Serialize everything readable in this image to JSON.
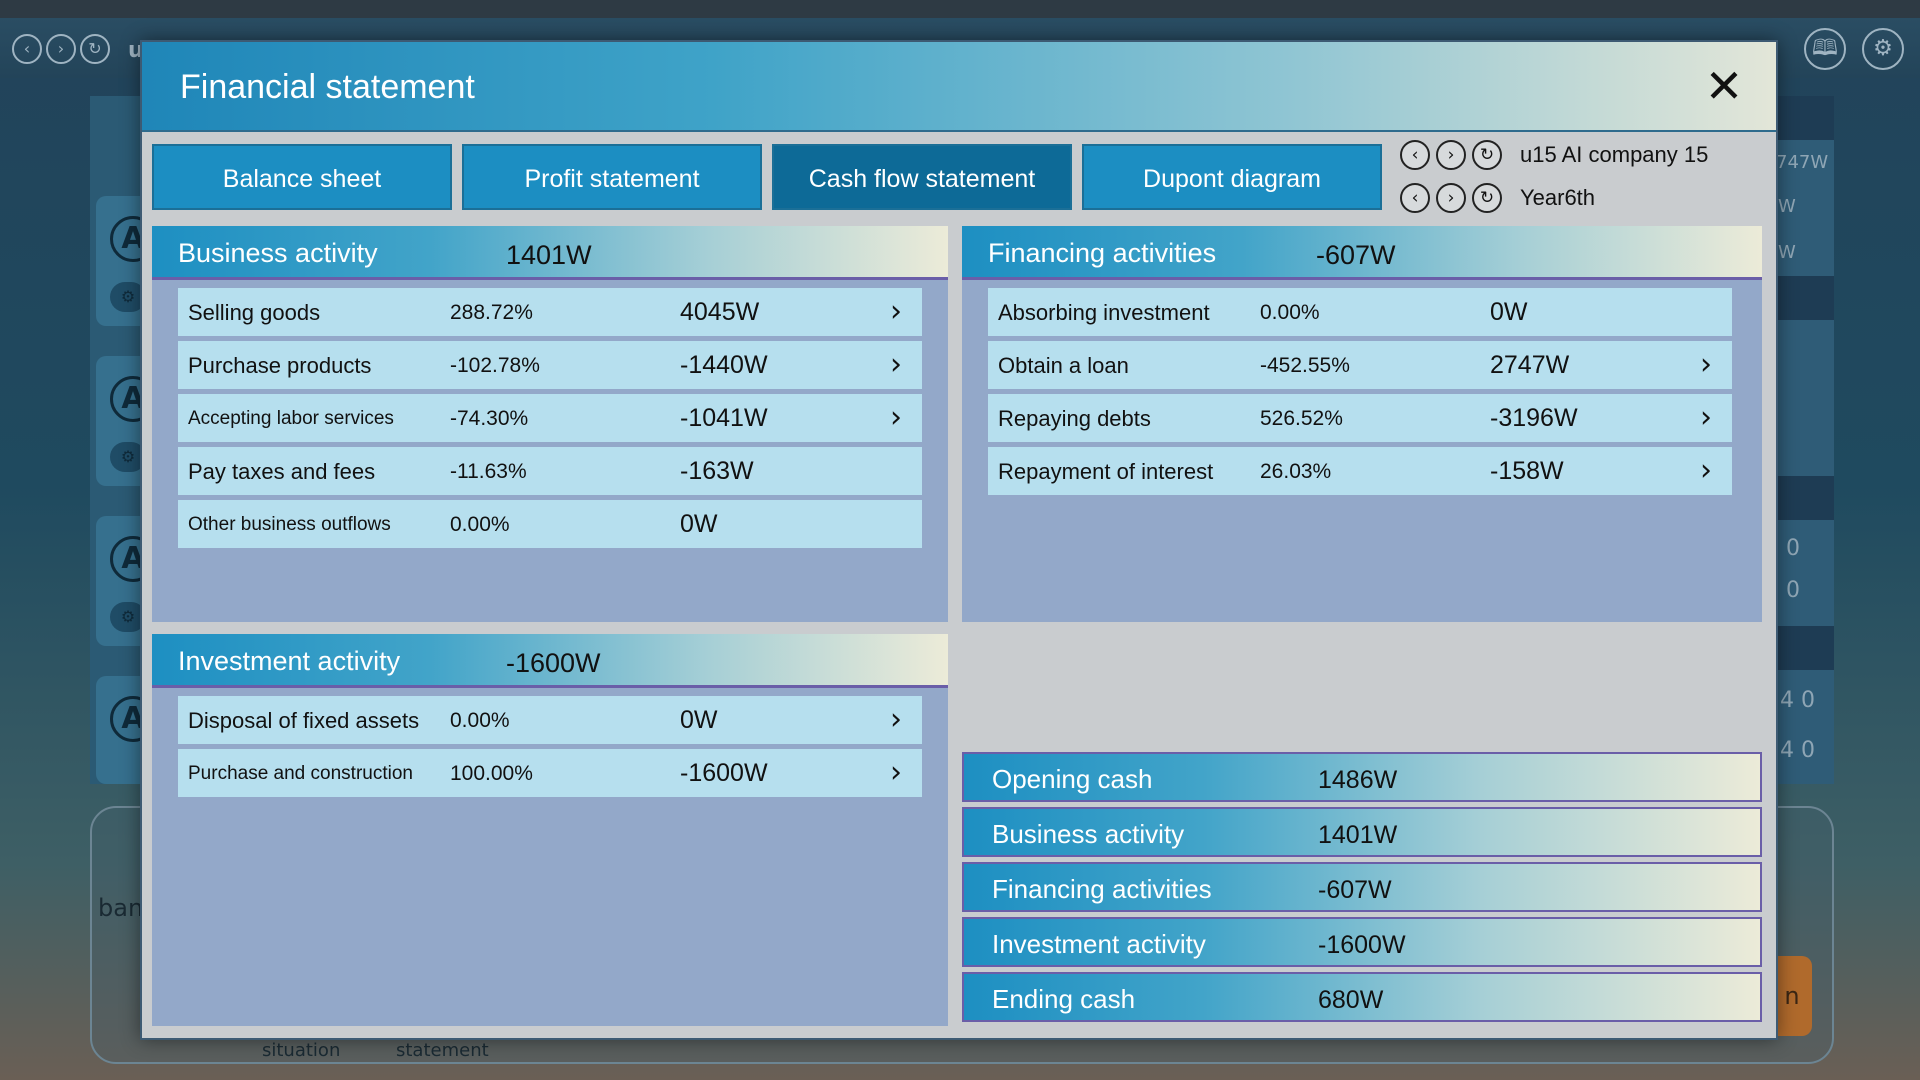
{
  "modal": {
    "title": "Financial statement",
    "close_icon": "close-icon"
  },
  "tabs": [
    {
      "label": "Balance sheet",
      "active": false
    },
    {
      "label": "Profit statement",
      "active": false
    },
    {
      "label": "Cash flow statement",
      "active": true
    },
    {
      "label": "Dupont diagram",
      "active": false
    }
  ],
  "company": {
    "label": "u15  AI company 15",
    "year": "Year6th"
  },
  "business_activity": {
    "title": "Business activity",
    "total": "1401W",
    "rows": [
      {
        "label": "Selling goods",
        "pct": "288.72%",
        "amount": "4045W",
        "has_arrow": true
      },
      {
        "label": "Purchase products",
        "pct": "-102.78%",
        "amount": "-1440W",
        "has_arrow": true
      },
      {
        "label": "Accepting labor services",
        "pct": "-74.30%",
        "amount": "-1041W",
        "has_arrow": true
      },
      {
        "label": "Pay taxes and fees",
        "pct": "-11.63%",
        "amount": "-163W",
        "has_arrow": false
      },
      {
        "label": "Other business outflows",
        "pct": "0.00%",
        "amount": "0W",
        "has_arrow": false
      }
    ]
  },
  "financing_activities": {
    "title": "Financing activities",
    "total": "-607W",
    "rows": [
      {
        "label": "Absorbing investment",
        "pct": "0.00%",
        "amount": "0W",
        "has_arrow": false
      },
      {
        "label": "Obtain a loan",
        "pct": "-452.55%",
        "amount": "2747W",
        "has_arrow": true
      },
      {
        "label": "Repaying debts",
        "pct": "526.52%",
        "amount": "-3196W",
        "has_arrow": true
      },
      {
        "label": "Repayment of interest",
        "pct": "26.03%",
        "amount": "-158W",
        "has_arrow": true
      }
    ]
  },
  "investment_activity": {
    "title": "Investment activity",
    "total": "-1600W",
    "rows": [
      {
        "label": "Disposal of fixed assets",
        "pct": "0.00%",
        "amount": "0W",
        "has_arrow": true
      },
      {
        "label": "Purchase and construction",
        "pct": "100.00%",
        "amount": "-1600W",
        "has_arrow": true
      }
    ]
  },
  "summary": [
    {
      "label": "Opening cash",
      "value": "1486W"
    },
    {
      "label": "Business activity",
      "value": "1401W"
    },
    {
      "label": "Financing activities",
      "value": "-607W"
    },
    {
      "label": "Investment activity",
      "value": "-1600W"
    },
    {
      "label": "Ending cash",
      "value": "680W"
    }
  ],
  "background": {
    "top_letter": "u",
    "right_texts": [
      "747W",
      "W",
      "W",
      "0",
      "0",
      "4  0",
      "4  0"
    ],
    "bottom_texts": [
      "ban",
      "situation",
      "statement",
      "n"
    ]
  },
  "colors": {
    "accent": "#1c8ec2",
    "accent_active": "#0d6a97",
    "panel_bg": "#93a8c9",
    "row_bg": "#b6dfee"
  }
}
